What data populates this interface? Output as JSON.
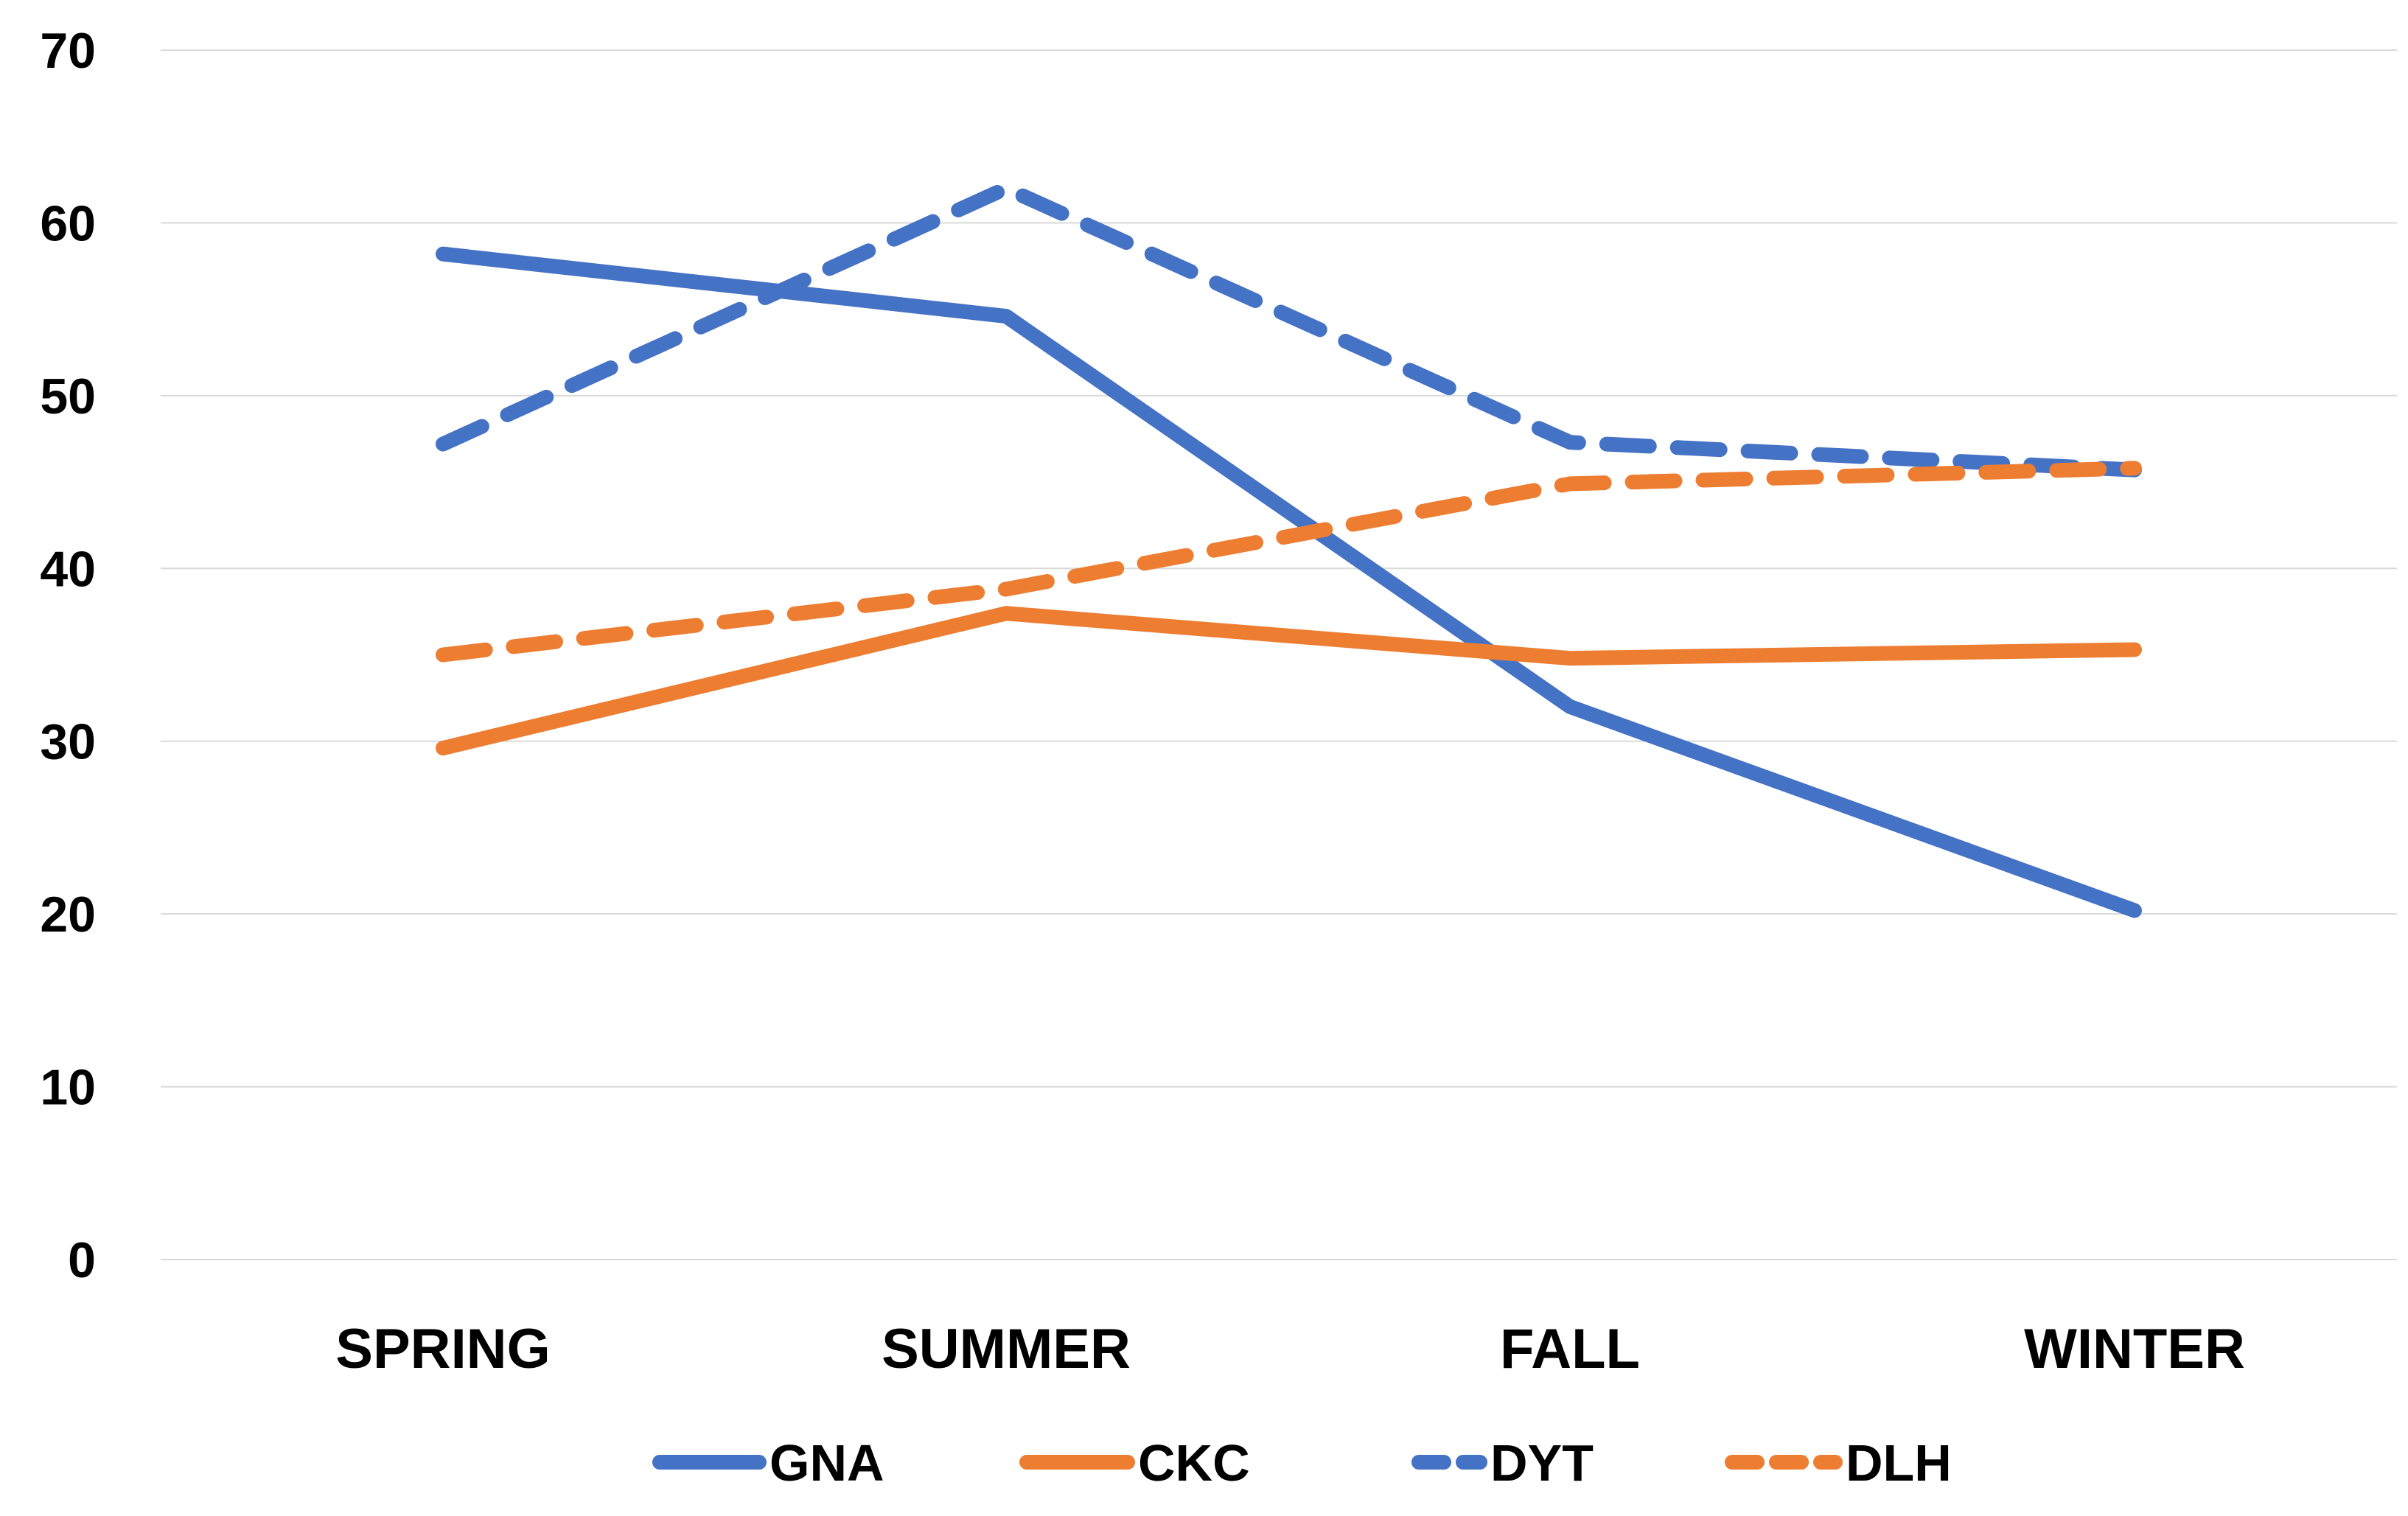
{
  "chart_data": {
    "type": "line",
    "title": "",
    "xlabel": "",
    "ylabel": "",
    "categories": [
      "SPRING",
      "SUMMER",
      "FALL",
      "WINTER"
    ],
    "ylim": [
      0,
      70
    ],
    "yticks": [
      0,
      10,
      20,
      30,
      40,
      50,
      60,
      70
    ],
    "grid": true,
    "legend_position": "bottom",
    "series": [
      {
        "name": "GNA",
        "values": [
          58.2,
          54.6,
          32.0,
          20.2
        ],
        "color": "#4472C4",
        "style": "solid"
      },
      {
        "name": "CKC",
        "values": [
          29.6,
          37.4,
          34.8,
          35.3
        ],
        "color": "#ED7D31",
        "style": "solid"
      },
      {
        "name": "DYT",
        "values": [
          47.2,
          62.0,
          47.3,
          45.7
        ],
        "color": "#4472C4",
        "style": "dashed"
      },
      {
        "name": "DLH",
        "values": [
          35.0,
          38.8,
          44.9,
          45.8
        ],
        "color": "#ED7D31",
        "style": "dashed"
      }
    ]
  }
}
